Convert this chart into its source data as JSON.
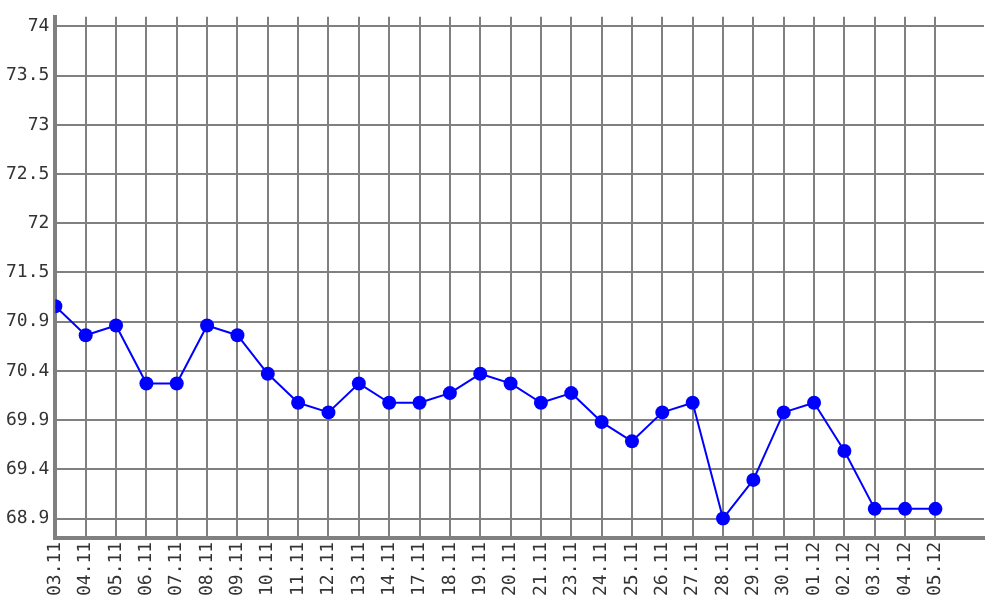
{
  "chart_data": {
    "type": "line",
    "categories": [
      "03.11",
      "04.11",
      "05.11",
      "06.11",
      "07.11",
      "08.11",
      "09.11",
      "10.11",
      "11.11",
      "12.11",
      "13.11",
      "14.11",
      "17.11",
      "18.11",
      "19.11",
      "20.11",
      "21.11",
      "23.11",
      "24.11",
      "25.11",
      "26.11",
      "27.11",
      "28.11",
      "29.11",
      "30.11",
      "01.12",
      "02.12",
      "03.12",
      "04.12",
      "05.12"
    ],
    "series": [
      {
        "color": "#0000ff",
        "values": [
          71.1,
          70.8,
          70.9,
          70.3,
          70.3,
          70.9,
          70.8,
          70.4,
          70.1,
          70.0,
          70.3,
          70.1,
          70.1,
          70.2,
          70.4,
          70.3,
          70.1,
          70.2,
          69.9,
          69.7,
          70.0,
          70.1,
          68.9,
          69.3,
          70.0,
          70.1,
          69.6,
          69.0,
          69.0,
          69.0
        ]
      }
    ],
    "ylim": [
      68.7,
      74.1
    ],
    "yticks": [
      68.9,
      {
        "value": 69.41,
        "label": "69.4"
      },
      {
        "value": 69.92,
        "label": "69.9"
      },
      {
        "value": 70.43,
        "label": "70.4"
      },
      {
        "value": 70.94,
        "label": "70.9"
      },
      {
        "value": 71.45,
        "label": "71.5"
      },
      {
        "value": 71.96,
        "label": "72"
      },
      {
        "value": 72.47,
        "label": "72.5"
      },
      {
        "value": 72.98,
        "label": "73"
      },
      {
        "value": 73.49,
        "label": "73.5"
      },
      74
    ],
    "grid": true,
    "marker": "circle",
    "line_style": "solid",
    "legend": false
  }
}
